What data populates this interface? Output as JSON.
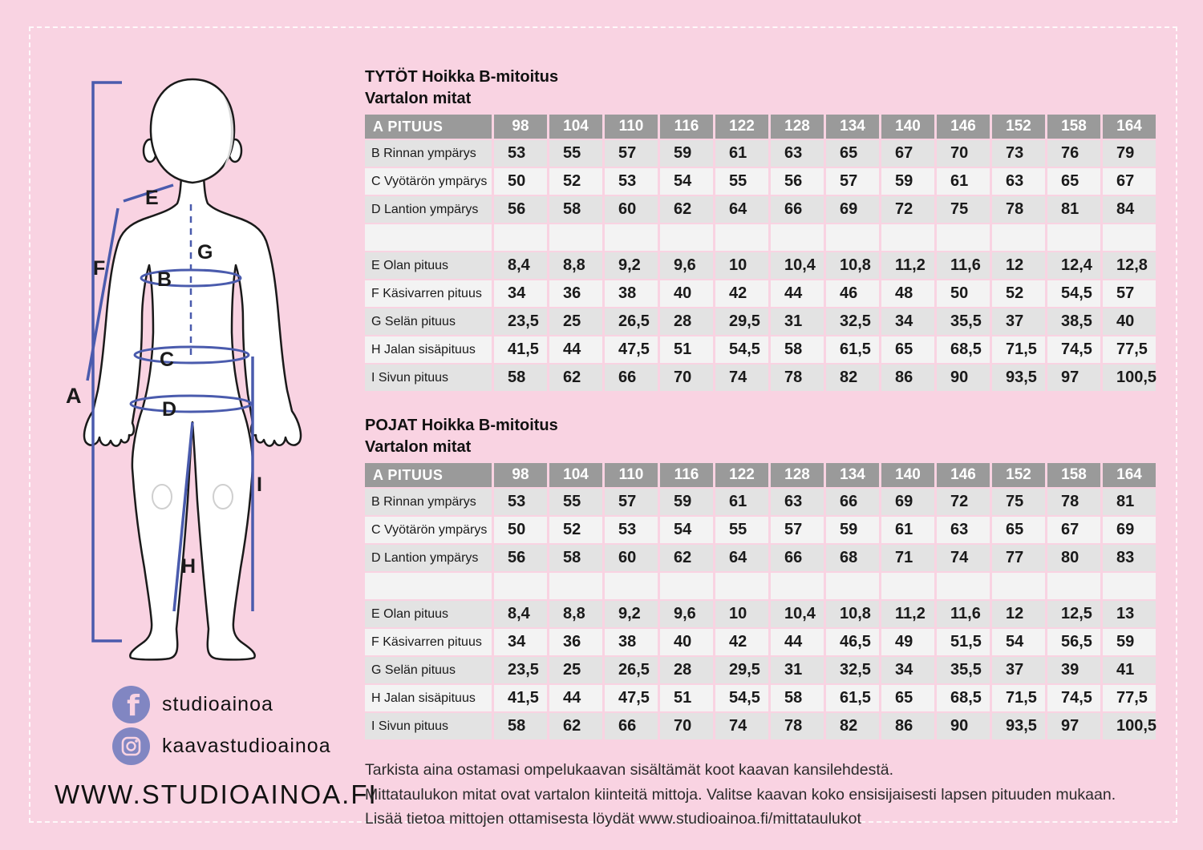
{
  "colors": {
    "background_pink": "#f9d3e2",
    "measurement_blue": "#4a5bad",
    "social_icon_purple": "#8186c2",
    "table_header_gray": "#9a9a9a",
    "row_dark": "#e3e3e3",
    "row_light": "#f3f3f3"
  },
  "figure": {
    "labels": [
      "A",
      "B",
      "C",
      "D",
      "E",
      "F",
      "G",
      "H",
      "I"
    ]
  },
  "social": {
    "facebook_handle": "studioainoa",
    "instagram_handle": "kaavastudioainoa",
    "website": "WWW.STUDIOAINOA.FI"
  },
  "tables": [
    {
      "title_line1": "TYTÖT Hoikka B-mitoitus",
      "title_line2": "Vartalon mitat",
      "header_label": "A PITUUS",
      "sizes": [
        "98",
        "104",
        "110",
        "116",
        "122",
        "128",
        "134",
        "140",
        "146",
        "152",
        "158",
        "164"
      ],
      "rows": [
        {
          "label": "B Rinnan ympärys",
          "values": [
            "53",
            "55",
            "57",
            "59",
            "61",
            "63",
            "65",
            "67",
            "70",
            "73",
            "76",
            "79"
          ]
        },
        {
          "label": "C Vyötärön ympärys",
          "values": [
            "50",
            "52",
            "53",
            "54",
            "55",
            "56",
            "57",
            "59",
            "61",
            "63",
            "65",
            "67"
          ]
        },
        {
          "label": "D Lantion ympärys",
          "values": [
            "56",
            "58",
            "60",
            "62",
            "64",
            "66",
            "69",
            "72",
            "75",
            "78",
            "81",
            "84"
          ]
        },
        {
          "spacer": true,
          "label": ""
        },
        {
          "label": "E Olan pituus",
          "values": [
            "8,4",
            "8,8",
            "9,2",
            "9,6",
            "10",
            "10,4",
            "10,8",
            "11,2",
            "11,6",
            "12",
            "12,4",
            "12,8"
          ]
        },
        {
          "label": "F Käsivarren pituus",
          "values": [
            "34",
            "36",
            "38",
            "40",
            "42",
            "44",
            "46",
            "48",
            "50",
            "52",
            "54,5",
            "57"
          ]
        },
        {
          "label": "G Selän pituus",
          "values": [
            "23,5",
            "25",
            "26,5",
            "28",
            "29,5",
            "31",
            "32,5",
            "34",
            "35,5",
            "37",
            "38,5",
            "40"
          ]
        },
        {
          "label": "H Jalan sisäpituus",
          "values": [
            "41,5",
            "44",
            "47,5",
            "51",
            "54,5",
            "58",
            "61,5",
            "65",
            "68,5",
            "71,5",
            "74,5",
            "77,5"
          ]
        },
        {
          "label": "I Sivun pituus",
          "values": [
            "58",
            "62",
            "66",
            "70",
            "74",
            "78",
            "82",
            "86",
            "90",
            "93,5",
            "97",
            "100,5"
          ]
        }
      ]
    },
    {
      "title_line1": "POJAT Hoikka B-mitoitus",
      "title_line2": "Vartalon mitat",
      "header_label": "A PITUUS",
      "sizes": [
        "98",
        "104",
        "110",
        "116",
        "122",
        "128",
        "134",
        "140",
        "146",
        "152",
        "158",
        "164"
      ],
      "rows": [
        {
          "label": "B Rinnan ympärys",
          "values": [
            "53",
            "55",
            "57",
            "59",
            "61",
            "63",
            "66",
            "69",
            "72",
            "75",
            "78",
            "81"
          ]
        },
        {
          "label": "C Vyötärön ympärys",
          "values": [
            "50",
            "52",
            "53",
            "54",
            "55",
            "57",
            "59",
            "61",
            "63",
            "65",
            "67",
            "69"
          ]
        },
        {
          "label": "D Lantion ympärys",
          "values": [
            "56",
            "58",
            "60",
            "62",
            "64",
            "66",
            "68",
            "71",
            "74",
            "77",
            "80",
            "83"
          ]
        },
        {
          "spacer": true,
          "label": ""
        },
        {
          "label": "E Olan pituus",
          "values": [
            "8,4",
            "8,8",
            "9,2",
            "9,6",
            "10",
            "10,4",
            "10,8",
            "11,2",
            "11,6",
            "12",
            "12,5",
            "13"
          ]
        },
        {
          "label": "F Käsivarren pituus",
          "values": [
            "34",
            "36",
            "38",
            "40",
            "42",
            "44",
            "46,5",
            "49",
            "51,5",
            "54",
            "56,5",
            "59"
          ]
        },
        {
          "label": "G Selän pituus",
          "values": [
            "23,5",
            "25",
            "26,5",
            "28",
            "29,5",
            "31",
            "32,5",
            "34",
            "35,5",
            "37",
            "39",
            "41"
          ]
        },
        {
          "label": "H Jalan sisäpituus",
          "values": [
            "41,5",
            "44",
            "47,5",
            "51",
            "54,5",
            "58",
            "61,5",
            "65",
            "68,5",
            "71,5",
            "74,5",
            "77,5"
          ]
        },
        {
          "label": "I Sivun pituus",
          "values": [
            "58",
            "62",
            "66",
            "70",
            "74",
            "78",
            "82",
            "86",
            "90",
            "93,5",
            "97",
            "100,5"
          ]
        }
      ]
    }
  ],
  "footer": {
    "lines": [
      "Tarkista aina ostamasi ompelukaavan sisältämät koot kaavan kansilehdestä.",
      "Mittataulukon mitat ovat vartalon kiinteitä mittoja. Valitse kaavan koko ensisijaisesti lapsen pituuden mukaan.",
      "Lisää tietoa mittojen ottamisesta löydät www.studioainoa.fi/mittataulukot"
    ]
  }
}
